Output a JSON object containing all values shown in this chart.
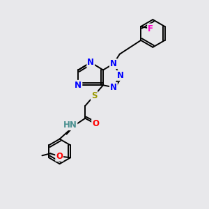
{
  "bg_color": "#e8e8eb",
  "atom_colors": {
    "N": "#0000ff",
    "O": "#ff0000",
    "S": "#999900",
    "F": "#ff00cc",
    "C": "#000000",
    "H": "#4a9090"
  },
  "bond_color": "#000000",
  "bond_lw": 1.4,
  "font_size_atom": 8.5,
  "fig_size": [
    3.0,
    3.0
  ],
  "dpi": 100
}
